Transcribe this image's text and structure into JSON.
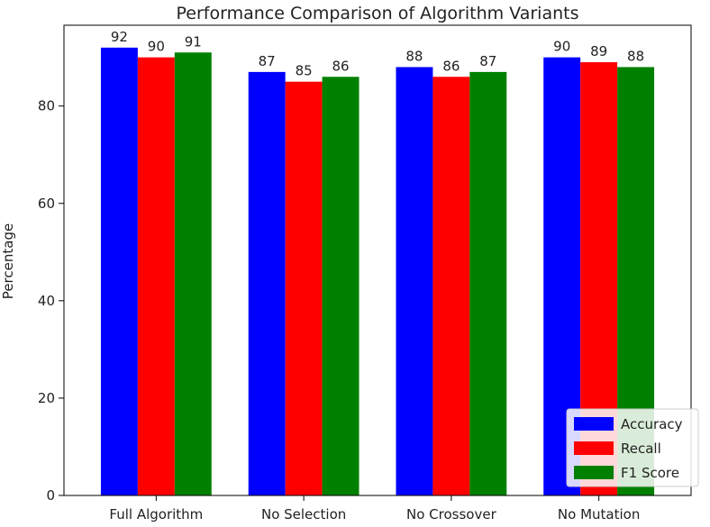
{
  "chart_data": {
    "type": "bar",
    "title": "Performance Comparison of Algorithm Variants",
    "xlabel": "",
    "ylabel": "Percentage",
    "categories": [
      "Full Algorithm",
      "No Selection",
      "No Crossover",
      "No Mutation"
    ],
    "series": [
      {
        "name": "Accuracy",
        "values": [
          92,
          87,
          88,
          90
        ],
        "color": "#0000ff"
      },
      {
        "name": "Recall",
        "values": [
          90,
          85,
          86,
          89
        ],
        "color": "#ff0000"
      },
      {
        "name": "F1 Score",
        "values": [
          91,
          86,
          87,
          88
        ],
        "color": "#008000"
      }
    ],
    "ylim": [
      0,
      96.6
    ],
    "yticks": [
      0,
      20,
      40,
      60,
      80
    ],
    "grid": false,
    "legend_position": "lower-right",
    "data_labels": true
  }
}
